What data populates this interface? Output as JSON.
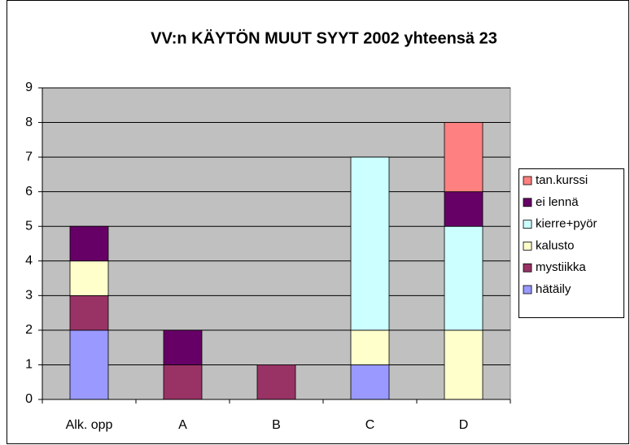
{
  "chart_data": {
    "type": "stacked_bar",
    "title": "VV:n KÄYTÖN MUUT SYYT 2002 yhteensä 23",
    "categories": [
      "Alk. opp",
      "A",
      "B",
      "C",
      "D"
    ],
    "series": [
      {
        "name": "hätäily",
        "color": "#9999ff",
        "values": [
          2,
          0,
          0,
          1,
          0
        ]
      },
      {
        "name": "mystiikka",
        "color": "#993366",
        "values": [
          1,
          1,
          1,
          0,
          0
        ]
      },
      {
        "name": "kalusto",
        "color": "#ffffcc",
        "values": [
          1,
          0,
          0,
          1,
          2
        ]
      },
      {
        "name": "kierre+pyör",
        "color": "#ccffff",
        "values": [
          0,
          0,
          0,
          5,
          3
        ]
      },
      {
        "name": "ei lennä",
        "color": "#660066",
        "values": [
          1,
          1,
          0,
          0,
          1
        ]
      },
      {
        "name": "tan.kurssi",
        "color": "#ff8080",
        "values": [
          0,
          0,
          0,
          0,
          2
        ]
      }
    ],
    "ylim": [
      0,
      9
    ],
    "yticks": [
      0,
      1,
      2,
      3,
      4,
      5,
      6,
      7,
      8,
      9
    ],
    "grid": true,
    "legend": "right"
  }
}
